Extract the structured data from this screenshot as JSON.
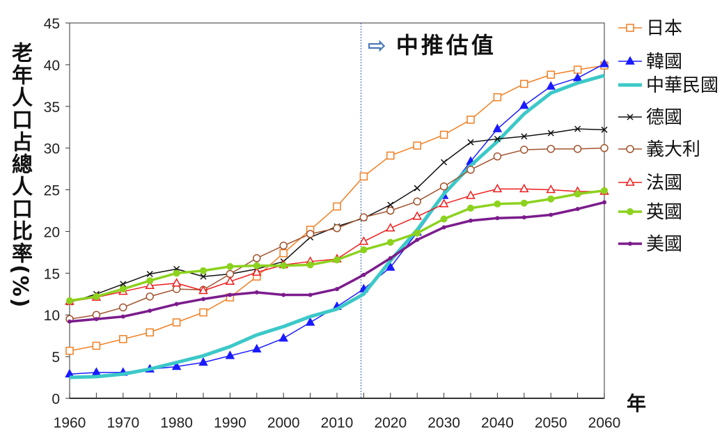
{
  "chart_data": {
    "type": "line",
    "title": "",
    "ylabel": "老年人口占總人口比率(%)",
    "xlabel": "年",
    "annotation": "中推估值",
    "projection_start": 2014.5,
    "xlim": [
      1960,
      2060
    ],
    "ylim": [
      0,
      45
    ],
    "x_ticks": [
      1960,
      1970,
      1980,
      1990,
      2000,
      2010,
      2020,
      2030,
      2040,
      2050,
      2060
    ],
    "y_ticks": [
      0,
      5,
      10,
      15,
      20,
      25,
      30,
      35,
      40,
      45
    ],
    "legend_position": "right",
    "x": [
      1960,
      1965,
      1970,
      1975,
      1980,
      1985,
      1990,
      1995,
      2000,
      2005,
      2010,
      2015,
      2020,
      2025,
      2030,
      2035,
      2040,
      2045,
      2050,
      2055,
      2060
    ],
    "series": [
      {
        "name": "日本",
        "color": "#f07f22",
        "marker": "square",
        "width": 1.5,
        "values": [
          5.7,
          6.3,
          7.1,
          7.9,
          9.1,
          10.3,
          12.1,
          14.6,
          17.4,
          20.2,
          23.0,
          26.6,
          29.1,
          30.3,
          31.6,
          33.4,
          36.1,
          37.7,
          38.8,
          39.4,
          39.9
        ]
      },
      {
        "name": "韓國",
        "color": "#1a1aff",
        "marker": "triangle",
        "width": 1.5,
        "values": [
          2.9,
          3.1,
          3.1,
          3.5,
          3.8,
          4.3,
          5.1,
          5.9,
          7.2,
          9.1,
          11.0,
          13.1,
          15.7,
          19.9,
          24.3,
          28.4,
          32.3,
          35.1,
          37.4,
          38.4,
          40.1
        ]
      },
      {
        "name": "中華民國",
        "color": "#3cc8c8",
        "marker": "none",
        "width": 5,
        "values": [
          2.5,
          2.6,
          2.9,
          3.5,
          4.3,
          5.1,
          6.2,
          7.6,
          8.6,
          9.8,
          10.7,
          12.5,
          16.5,
          20.2,
          24.5,
          27.9,
          30.8,
          34.1,
          36.6,
          37.8,
          38.7
        ]
      },
      {
        "name": "德國",
        "color": "#111111",
        "marker": "x",
        "width": 1.5,
        "values": [
          11.5,
          12.5,
          13.7,
          14.9,
          15.5,
          14.6,
          14.9,
          15.5,
          16.4,
          19.3,
          20.6,
          21.6,
          23.2,
          25.2,
          28.3,
          30.7,
          31.1,
          31.4,
          31.8,
          32.3,
          32.2
        ]
      },
      {
        "name": "義大利",
        "color": "#a0522d",
        "marker": "circle",
        "width": 1.5,
        "values": [
          9.5,
          10.0,
          10.9,
          12.2,
          13.1,
          13.0,
          14.9,
          16.8,
          18.3,
          19.7,
          20.4,
          21.7,
          22.5,
          23.6,
          25.4,
          27.4,
          29.0,
          29.8,
          29.9,
          29.9,
          30.0
        ]
      },
      {
        "name": "法國",
        "color": "#ee1c1c",
        "marker": "triangle-open",
        "width": 1.5,
        "values": [
          11.6,
          12.1,
          12.8,
          13.5,
          13.8,
          12.9,
          14.0,
          15.1,
          16.0,
          16.4,
          16.7,
          18.8,
          20.4,
          21.8,
          23.3,
          24.3,
          25.1,
          25.1,
          25.0,
          24.8,
          24.8
        ]
      },
      {
        "name": "英國",
        "color": "#8cd21e",
        "marker": "dot",
        "width": 3.5,
        "values": [
          11.7,
          12.2,
          13.1,
          14.1,
          15.0,
          15.3,
          15.8,
          15.9,
          15.9,
          16.0,
          16.6,
          17.8,
          18.7,
          19.8,
          21.5,
          22.8,
          23.3,
          23.4,
          23.9,
          24.5,
          24.9
        ]
      },
      {
        "name": "美國",
        "color": "#7b1c8c",
        "marker": "smalldot",
        "width": 3.5,
        "values": [
          9.2,
          9.5,
          9.8,
          10.5,
          11.3,
          11.9,
          12.4,
          12.7,
          12.4,
          12.4,
          13.1,
          14.8,
          16.8,
          19.0,
          20.5,
          21.3,
          21.6,
          21.7,
          22.0,
          22.7,
          23.5
        ]
      }
    ]
  }
}
